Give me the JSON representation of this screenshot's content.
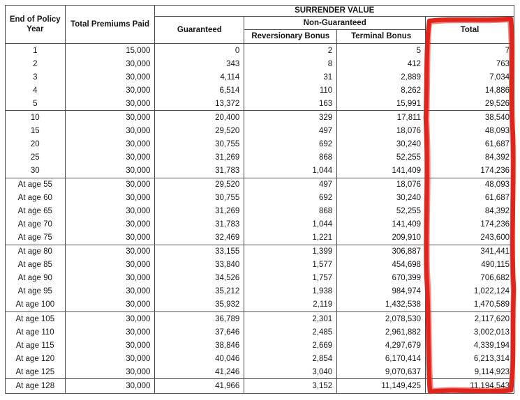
{
  "table": {
    "headers": {
      "policy_year": "End of Policy Year",
      "premiums": "Total Premiums Paid",
      "surrender_value": "SURRENDER VALUE",
      "guaranteed": "Guaranteed",
      "non_guaranteed": "Non-Guaranteed",
      "reversionary": "Reversionary Bonus",
      "terminal": "Terminal Bonus",
      "total": "Total"
    },
    "rows": [
      {
        "label": "1",
        "premiums": "15,000",
        "guaranteed": "0",
        "reversionary": "2",
        "terminal": "5",
        "total": "7"
      },
      {
        "label": "2",
        "premiums": "30,000",
        "guaranteed": "343",
        "reversionary": "8",
        "terminal": "412",
        "total": "763"
      },
      {
        "label": "3",
        "premiums": "30,000",
        "guaranteed": "4,114",
        "reversionary": "31",
        "terminal": "2,889",
        "total": "7,034"
      },
      {
        "label": "4",
        "premiums": "30,000",
        "guaranteed": "6,514",
        "reversionary": "110",
        "terminal": "8,262",
        "total": "14,886"
      },
      {
        "label": "5",
        "premiums": "30,000",
        "guaranteed": "13,372",
        "reversionary": "163",
        "terminal": "15,991",
        "total": "29,526"
      },
      {
        "label": "10",
        "premiums": "30,000",
        "guaranteed": "20,400",
        "reversionary": "329",
        "terminal": "17,811",
        "total": "38,540"
      },
      {
        "label": "15",
        "premiums": "30,000",
        "guaranteed": "29,520",
        "reversionary": "497",
        "terminal": "18,076",
        "total": "48,093"
      },
      {
        "label": "20",
        "premiums": "30,000",
        "guaranteed": "30,755",
        "reversionary": "692",
        "terminal": "30,240",
        "total": "61,687"
      },
      {
        "label": "25",
        "premiums": "30,000",
        "guaranteed": "31,269",
        "reversionary": "868",
        "terminal": "52,255",
        "total": "84,392"
      },
      {
        "label": "30",
        "premiums": "30,000",
        "guaranteed": "31,783",
        "reversionary": "1,044",
        "terminal": "141,409",
        "total": "174,236"
      },
      {
        "label": "At age 55",
        "premiums": "30,000",
        "guaranteed": "29,520",
        "reversionary": "497",
        "terminal": "18,076",
        "total": "48,093"
      },
      {
        "label": "At age 60",
        "premiums": "30,000",
        "guaranteed": "30,755",
        "reversionary": "692",
        "terminal": "30,240",
        "total": "61,687"
      },
      {
        "label": "At age 65",
        "premiums": "30,000",
        "guaranteed": "31,269",
        "reversionary": "868",
        "terminal": "52,255",
        "total": "84,392"
      },
      {
        "label": "At age 70",
        "premiums": "30,000",
        "guaranteed": "31,783",
        "reversionary": "1,044",
        "terminal": "141,409",
        "total": "174,236"
      },
      {
        "label": "At age 75",
        "premiums": "30,000",
        "guaranteed": "32,469",
        "reversionary": "1,221",
        "terminal": "209,910",
        "total": "243,600"
      },
      {
        "label": "At age 80",
        "premiums": "30,000",
        "guaranteed": "33,155",
        "reversionary": "1,399",
        "terminal": "306,887",
        "total": "341,441"
      },
      {
        "label": "At age 85",
        "premiums": "30,000",
        "guaranteed": "33,840",
        "reversionary": "1,577",
        "terminal": "454,698",
        "total": "490,115"
      },
      {
        "label": "At age 90",
        "premiums": "30,000",
        "guaranteed": "34,526",
        "reversionary": "1,757",
        "terminal": "670,399",
        "total": "706,682"
      },
      {
        "label": "At age 95",
        "premiums": "30,000",
        "guaranteed": "35,212",
        "reversionary": "1,938",
        "terminal": "984,974",
        "total": "1,022,124"
      },
      {
        "label": "At age 100",
        "premiums": "30,000",
        "guaranteed": "35,932",
        "reversionary": "2,119",
        "terminal": "1,432,538",
        "total": "1,470,589"
      },
      {
        "label": "At age 105",
        "premiums": "30,000",
        "guaranteed": "36,789",
        "reversionary": "2,301",
        "terminal": "2,078,530",
        "total": "2,117,620"
      },
      {
        "label": "At age 110",
        "premiums": "30,000",
        "guaranteed": "37,646",
        "reversionary": "2,485",
        "terminal": "2,961,882",
        "total": "3,002,013"
      },
      {
        "label": "At age 115",
        "premiums": "30,000",
        "guaranteed": "38,846",
        "reversionary": "2,669",
        "terminal": "4,297,679",
        "total": "4,339,194"
      },
      {
        "label": "At age 120",
        "premiums": "30,000",
        "guaranteed": "40,046",
        "reversionary": "2,854",
        "terminal": "6,170,414",
        "total": "6,213,314"
      },
      {
        "label": "At age 125",
        "premiums": "30,000",
        "guaranteed": "41,246",
        "reversionary": "3,040",
        "terminal": "9,070,637",
        "total": "9,114,923"
      },
      {
        "label": "At age 128",
        "premiums": "30,000",
        "guaranteed": "41,966",
        "reversionary": "3,152",
        "terminal": "11,149,425",
        "total": "11,194,543"
      }
    ],
    "group_size": 5
  },
  "annotation": {
    "type": "hand-drawn-rectangle",
    "target": "total-column",
    "color": "#e0251c"
  }
}
